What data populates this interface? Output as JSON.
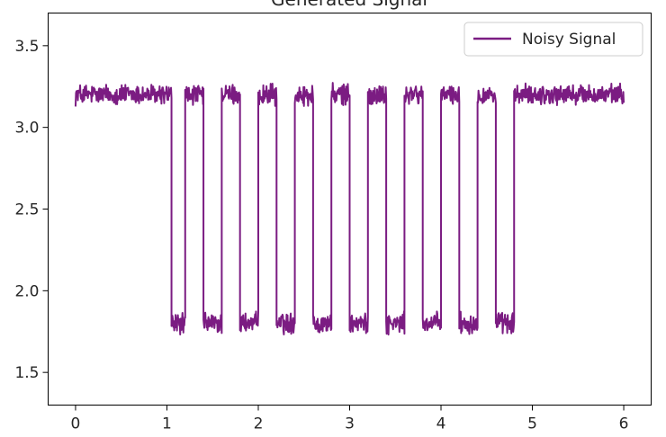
{
  "chart_data": {
    "type": "line",
    "title": "Generated Signal",
    "xlabel": "",
    "ylabel": "",
    "xlim": [
      -0.3,
      6.3
    ],
    "ylim": [
      1.3,
      3.7
    ],
    "x_ticks": [
      0,
      1,
      2,
      3,
      4,
      5,
      6
    ],
    "y_ticks": [
      1.5,
      2.0,
      2.5,
      3.0,
      3.5
    ],
    "x_tick_labels": [
      "0",
      "1",
      "2",
      "3",
      "4",
      "5",
      "6"
    ],
    "y_tick_labels": [
      "1.5",
      "2.0",
      "2.5",
      "3.0",
      "3.5"
    ],
    "grid": false,
    "legend": {
      "position": "upper right",
      "entries": [
        "Noisy Signal"
      ]
    },
    "series": [
      {
        "name": "Noisy Signal",
        "color": "#7b1c82",
        "high_level": 3.2,
        "low_level": 1.8,
        "noise_amplitude": 0.05,
        "x_start": 0.0,
        "x_end": 6.0,
        "segments": [
          {
            "x0": 0.0,
            "x1": 1.05,
            "level": "high"
          },
          {
            "x0": 1.05,
            "x1": 1.2,
            "level": "low"
          },
          {
            "x0": 1.2,
            "x1": 1.4,
            "level": "high"
          },
          {
            "x0": 1.4,
            "x1": 1.6,
            "level": "low"
          },
          {
            "x0": 1.6,
            "x1": 1.8,
            "level": "high"
          },
          {
            "x0": 1.8,
            "x1": 2.0,
            "level": "low"
          },
          {
            "x0": 2.0,
            "x1": 2.2,
            "level": "high"
          },
          {
            "x0": 2.2,
            "x1": 2.4,
            "level": "low"
          },
          {
            "x0": 2.4,
            "x1": 2.6,
            "level": "high"
          },
          {
            "x0": 2.6,
            "x1": 2.8,
            "level": "low"
          },
          {
            "x0": 2.8,
            "x1": 3.0,
            "level": "high"
          },
          {
            "x0": 3.0,
            "x1": 3.2,
            "level": "low"
          },
          {
            "x0": 3.2,
            "x1": 3.4,
            "level": "high"
          },
          {
            "x0": 3.4,
            "x1": 3.6,
            "level": "low"
          },
          {
            "x0": 3.6,
            "x1": 3.8,
            "level": "high"
          },
          {
            "x0": 3.8,
            "x1": 4.0,
            "level": "low"
          },
          {
            "x0": 4.0,
            "x1": 4.2,
            "level": "high"
          },
          {
            "x0": 4.2,
            "x1": 4.4,
            "level": "low"
          },
          {
            "x0": 4.4,
            "x1": 4.6,
            "level": "high"
          },
          {
            "x0": 4.6,
            "x1": 4.8,
            "level": "low"
          },
          {
            "x0": 4.8,
            "x1": 6.0,
            "level": "high"
          }
        ]
      }
    ]
  }
}
